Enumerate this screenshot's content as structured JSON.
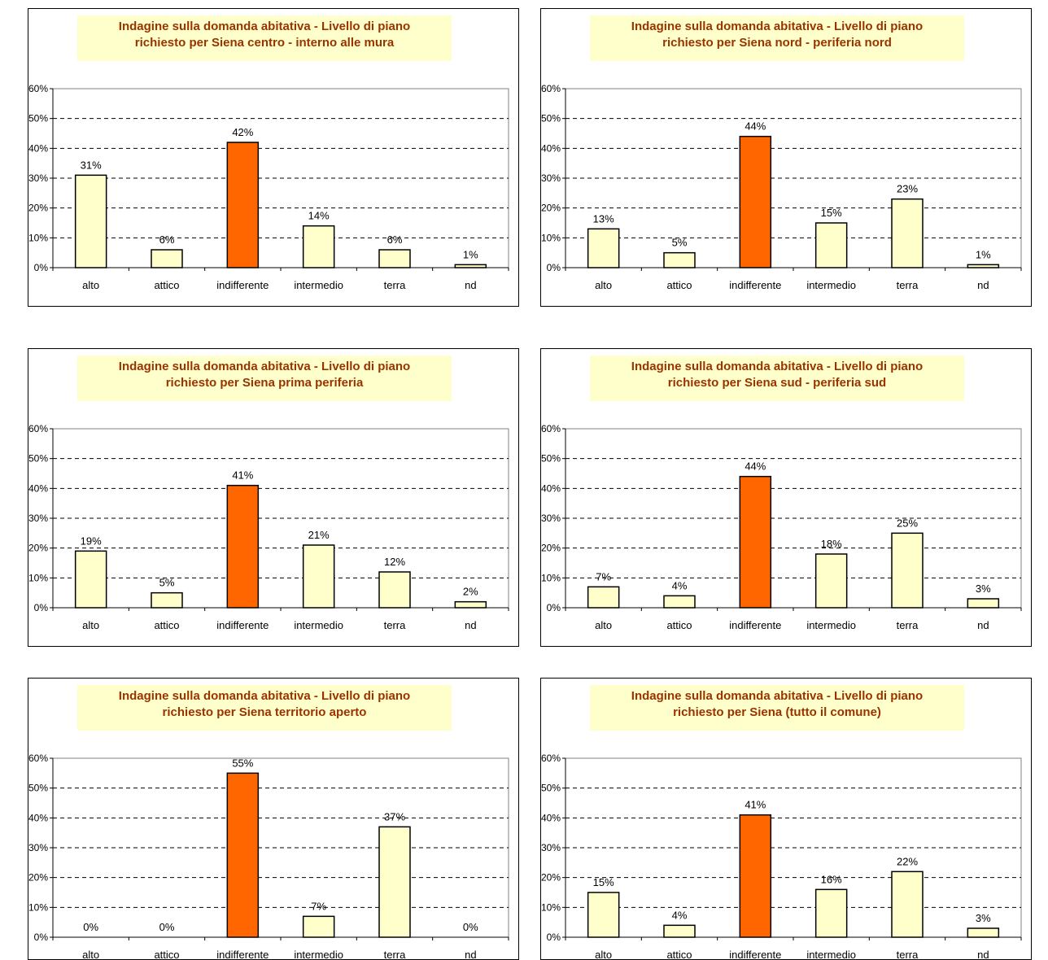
{
  "colors": {
    "bar_default": "#ffffcc",
    "bar_highlight": "#ff6600",
    "title_text": "#993300",
    "title_background": "#ffffcc",
    "grid": "#000000",
    "plot_border": "#808080"
  },
  "chart_data": [
    {
      "type": "bar",
      "title_line1": "Indagine sulla domanda abitativa - Livello di piano",
      "title_line2": "richiesto per Siena centro - interno alle mura",
      "categories": [
        "alto",
        "attico",
        "indifferente",
        "intermedio",
        "terra",
        "nd"
      ],
      "values": [
        31,
        6,
        42,
        14,
        6,
        1
      ],
      "labels": [
        "31%",
        "6%",
        "42%",
        "14%",
        "6%",
        "1%"
      ],
      "highlight_index": 2,
      "ylim": [
        0,
        60
      ],
      "yticks": [
        "0%",
        "10%",
        "20%",
        "30%",
        "40%",
        "50%",
        "60%"
      ],
      "grid": true
    },
    {
      "type": "bar",
      "title_line1": "Indagine sulla domanda abitativa - Livello di piano",
      "title_line2": "richiesto per Siena nord - periferia nord",
      "categories": [
        "alto",
        "attico",
        "indifferente",
        "intermedio",
        "terra",
        "nd"
      ],
      "values": [
        13,
        5,
        44,
        15,
        23,
        1
      ],
      "labels": [
        "13%",
        "5%",
        "44%",
        "15%",
        "23%",
        "1%"
      ],
      "highlight_index": 2,
      "ylim": [
        0,
        60
      ],
      "yticks": [
        "0%",
        "10%",
        "20%",
        "30%",
        "40%",
        "50%",
        "60%"
      ],
      "grid": true
    },
    {
      "type": "bar",
      "title_line1": "Indagine sulla domanda abitativa - Livello di piano",
      "title_line2": "richiesto per Siena prima periferia",
      "categories": [
        "alto",
        "attico",
        "indifferente",
        "intermedio",
        "terra",
        "nd"
      ],
      "values": [
        19,
        5,
        41,
        21,
        12,
        2
      ],
      "labels": [
        "19%",
        "5%",
        "41%",
        "21%",
        "12%",
        "2%"
      ],
      "highlight_index": 2,
      "ylim": [
        0,
        60
      ],
      "yticks": [
        "0%",
        "10%",
        "20%",
        "30%",
        "40%",
        "50%",
        "60%"
      ],
      "grid": true
    },
    {
      "type": "bar",
      "title_line1": "Indagine sulla domanda abitativa - Livello di piano",
      "title_line2": "richiesto per Siena sud - periferia sud",
      "categories": [
        "alto",
        "attico",
        "indifferente",
        "intermedio",
        "terra",
        "nd"
      ],
      "values": [
        7,
        4,
        44,
        18,
        25,
        3
      ],
      "labels": [
        "7%",
        "4%",
        "44%",
        "18%",
        "25%",
        "3%"
      ],
      "highlight_index": 2,
      "ylim": [
        0,
        60
      ],
      "yticks": [
        "0%",
        "10%",
        "20%",
        "30%",
        "40%",
        "50%",
        "60%"
      ],
      "grid": true
    },
    {
      "type": "bar",
      "title_line1": "Indagine sulla domanda abitativa - Livello di piano",
      "title_line2": "richiesto per Siena territorio aperto",
      "categories": [
        "alto",
        "attico",
        "indifferente",
        "intermedio",
        "terra",
        "nd"
      ],
      "values": [
        0,
        0,
        55,
        7,
        37,
        0
      ],
      "labels": [
        "0%",
        "0%",
        "55%",
        "7%",
        "37%",
        "0%"
      ],
      "highlight_index": 2,
      "ylim": [
        0,
        60
      ],
      "yticks": [
        "0%",
        "10%",
        "20%",
        "30%",
        "40%",
        "50%",
        "60%"
      ],
      "grid": true
    },
    {
      "type": "bar",
      "title_line1": "Indagine sulla domanda abitativa - Livello di piano",
      "title_line2": "richiesto per Siena (tutto il comune)",
      "categories": [
        "alto",
        "attico",
        "indifferente",
        "intermedio",
        "terra",
        "nd"
      ],
      "values": [
        15,
        4,
        41,
        16,
        22,
        3
      ],
      "labels": [
        "15%",
        "4%",
        "41%",
        "16%",
        "22%",
        "3%"
      ],
      "highlight_index": 2,
      "ylim": [
        0,
        60
      ],
      "yticks": [
        "0%",
        "10%",
        "20%",
        "30%",
        "40%",
        "50%",
        "60%"
      ],
      "grid": true
    }
  ]
}
